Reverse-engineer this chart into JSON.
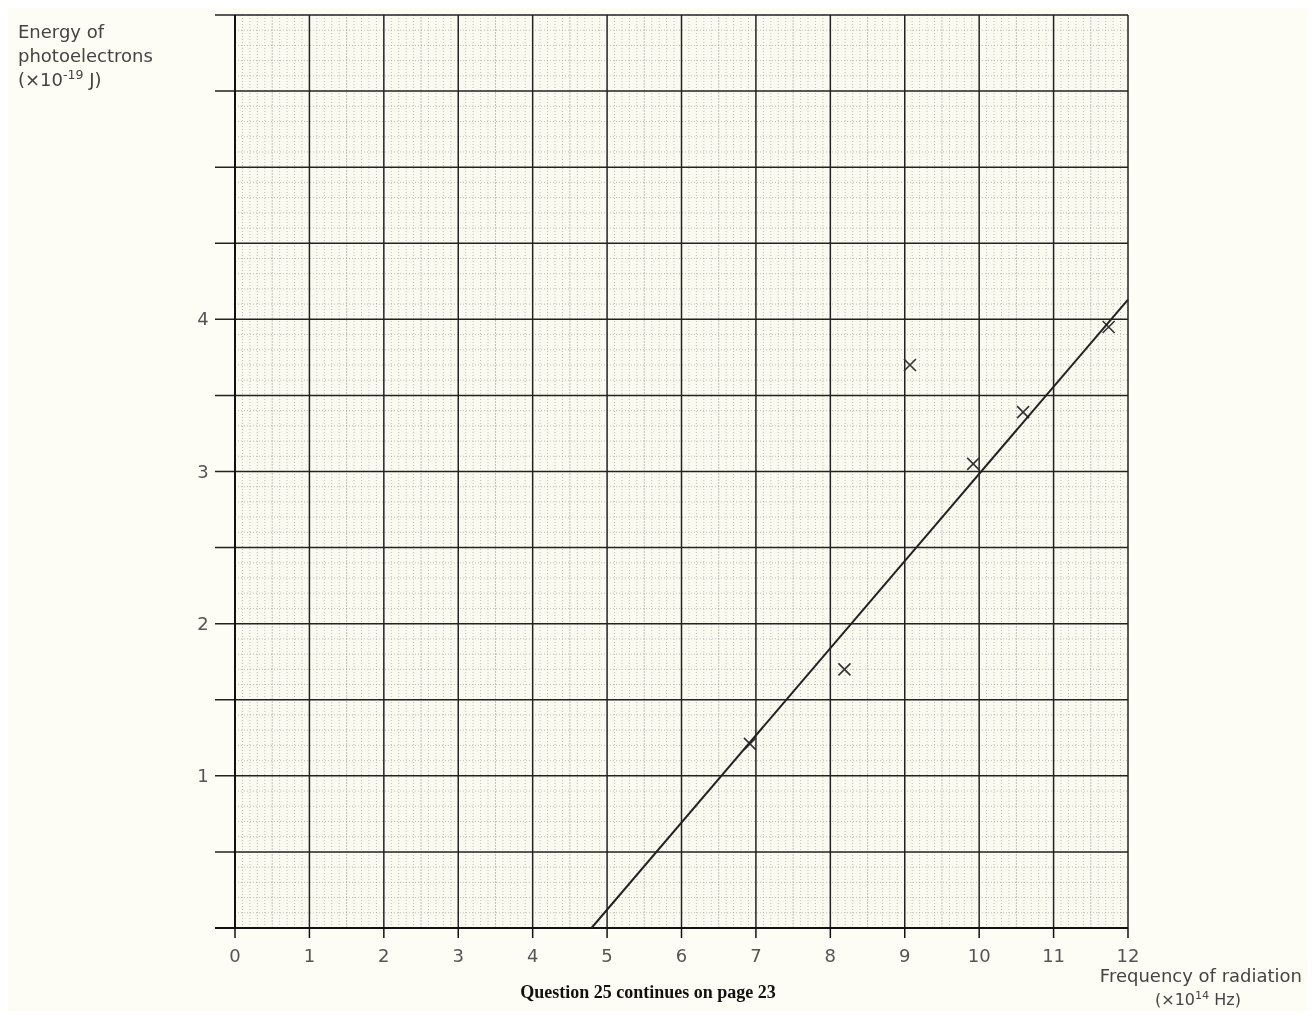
{
  "chart_data": {
    "type": "scatter",
    "xlabel": "Frequency of radiation (×10$^{14}$ Hz)",
    "ylabel": "Energy of photoelectrons (×10$^{-19}$ J)",
    "annotations": [
      "Question 25 continues on page 23"
    ],
    "xlim": [
      0,
      12
    ],
    "ylim": [
      0,
      6
    ],
    "xticks": [
      0,
      1,
      2,
      3,
      4,
      5,
      6,
      7,
      8,
      9,
      10,
      11,
      12
    ],
    "yticks": [
      {
        "value": 0,
        "label": null
      },
      {
        "value": 0.5,
        "label": null
      },
      1,
      {
        "value": 1.5,
        "label": null
      },
      2,
      {
        "value": 2.5,
        "label": null
      },
      3,
      {
        "value": 3.5,
        "label": null
      },
      4,
      {
        "value": 4.5,
        "label": null
      },
      {
        "value": 5,
        "label": null
      },
      {
        "value": 5.5,
        "label": null
      },
      {
        "value": 6,
        "label": null
      }
    ],
    "grid": true,
    "marker": "cross",
    "series": [
      {
        "color": "#333333",
        "x": [
          6.92,
          8.19,
          9.07,
          9.92,
          10.59,
          11.74
        ],
        "values": [
          1.21,
          1.7,
          3.7,
          3.05,
          3.39,
          3.95
        ]
      },
      {
        "type": "line",
        "color": "#222222",
        "marker": "none",
        "x": [
          4.79,
          12
        ],
        "values": [
          0,
          4.13
        ]
      }
    ]
  }
}
